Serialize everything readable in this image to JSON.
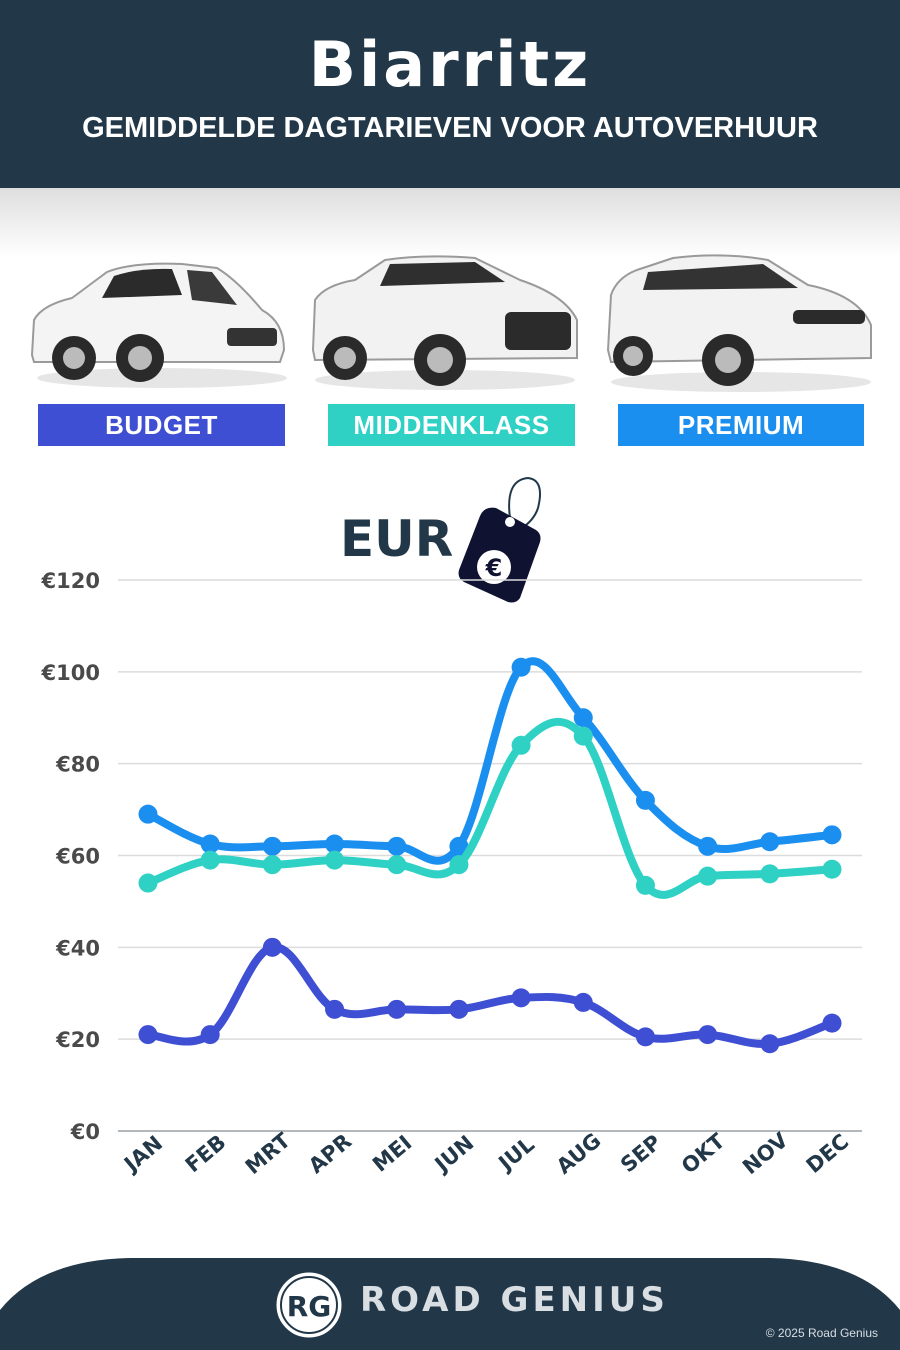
{
  "header": {
    "title": "Biarritz",
    "subtitle": "GEMIDDELDE DAGTARIEVEN VOOR AUTOVERHUUR"
  },
  "categories": [
    {
      "label": "BUDGET",
      "color": "#3f4fd4"
    },
    {
      "label": "MIDDENKLASS",
      "color": "#2ed1c4"
    },
    {
      "label": "PREMIUM",
      "color": "#1b8ff0"
    }
  ],
  "currency": {
    "label": "EUR",
    "symbol": "€"
  },
  "chart_data": {
    "type": "line",
    "categories": [
      "JAN",
      "FEB",
      "MRT",
      "APR",
      "MEI",
      "JUN",
      "JUL",
      "AUG",
      "SEP",
      "OKT",
      "NOV",
      "DEC"
    ],
    "series": [
      {
        "name": "BUDGET",
        "color": "#3f4fd4",
        "values": [
          21,
          21,
          40,
          26.5,
          26.5,
          26.5,
          29,
          28,
          20.5,
          21,
          19,
          23.5
        ]
      },
      {
        "name": "MIDDENKLASS",
        "color": "#2ed1c4",
        "values": [
          54,
          59,
          58,
          59,
          58,
          58,
          84,
          86,
          53.5,
          55.5,
          56,
          57
        ]
      },
      {
        "name": "PREMIUM",
        "color": "#1b8ff0",
        "values": [
          69,
          62.5,
          62,
          62.5,
          62,
          62,
          101,
          90,
          72,
          62,
          63,
          64.5
        ]
      }
    ],
    "yticks": [
      "€0",
      "€20",
      "€40",
      "€60",
      "€80",
      "€100",
      "€120"
    ],
    "ylim": [
      0,
      120
    ],
    "grid": true
  },
  "footer": {
    "brand": "ROAD GENIUS",
    "logo_text": "RG",
    "copyright": "© 2025 Road Genius"
  }
}
